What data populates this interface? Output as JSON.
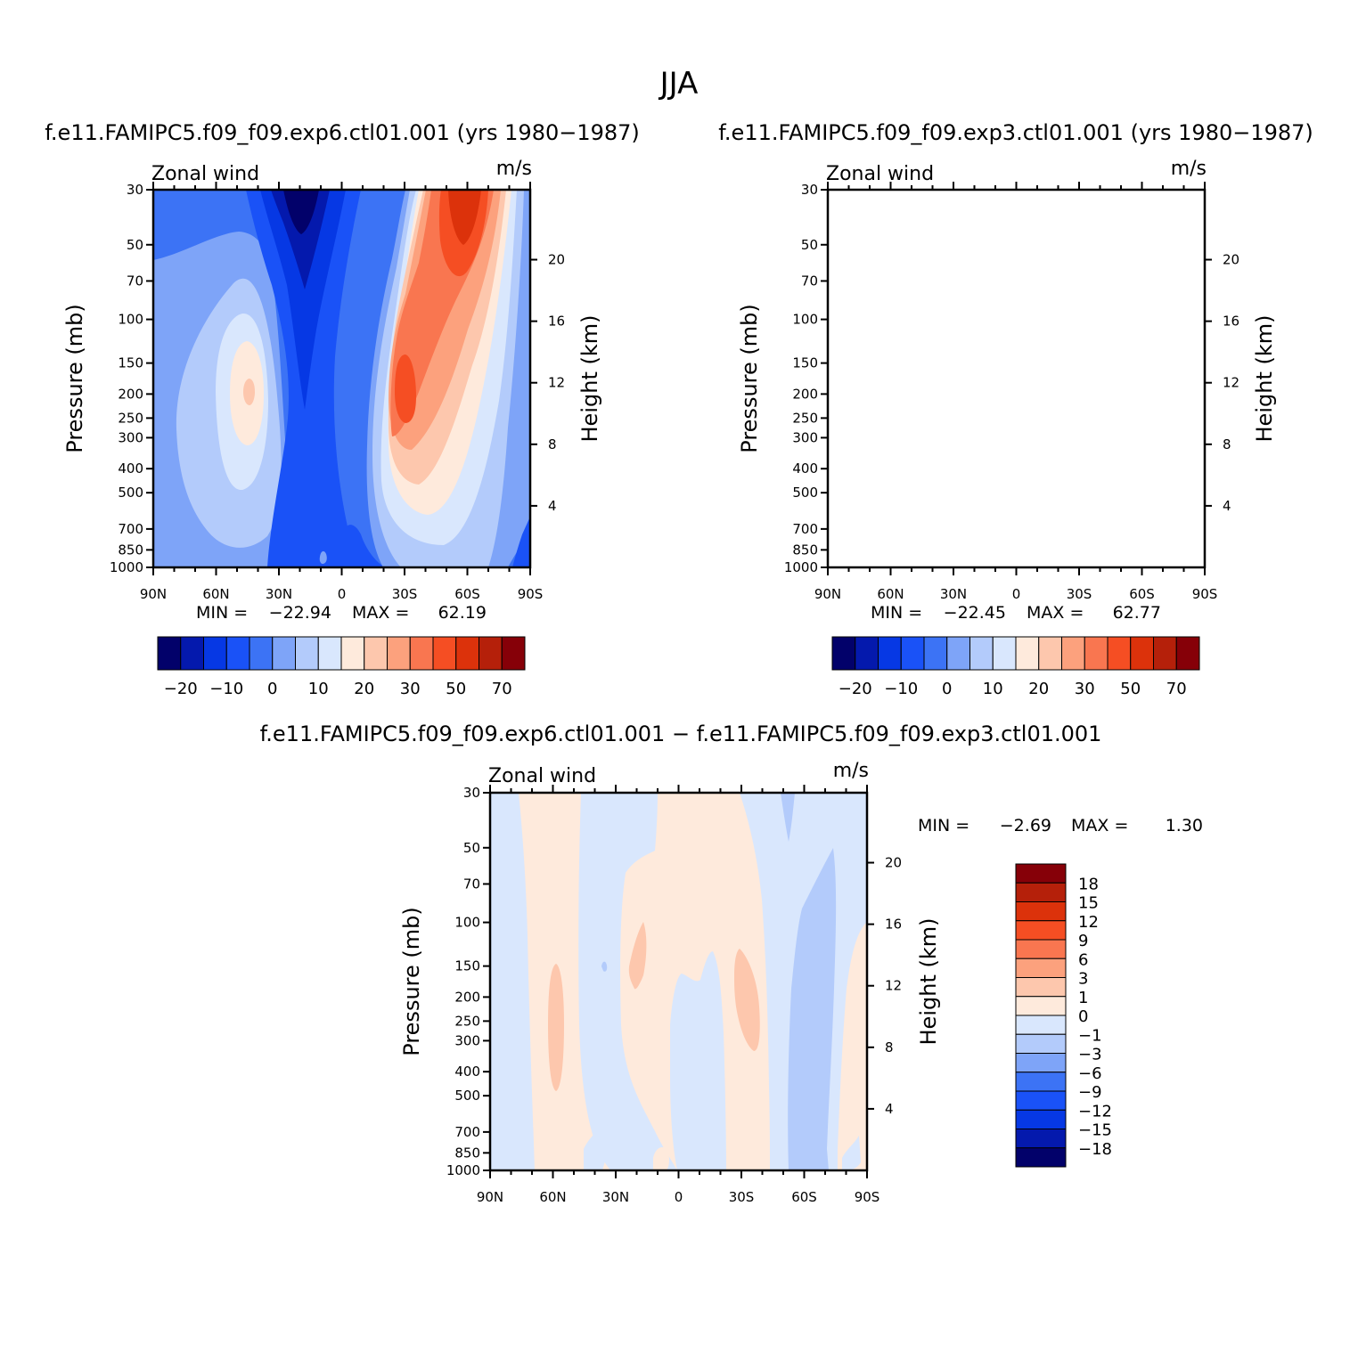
{
  "figure_title": "JJA",
  "chart_data": [
    {
      "type": "heatmap",
      "id": "panel-a",
      "title": "f.e11.FAMIPC5.f09_f09.exp6.ctl01.001 (yrs 1980−1987)",
      "left_label": "Zonal wind",
      "right_label": "m/s",
      "ylabel": "Pressure (mb)",
      "y2label": "Height (km)",
      "x_ticks": [
        "90N",
        "60N",
        "30N",
        "0",
        "30S",
        "60S",
        "90S"
      ],
      "y_ticks": [
        30,
        50,
        70,
        100,
        150,
        200,
        250,
        300,
        400,
        500,
        700,
        850,
        1000
      ],
      "y2_ticks": [
        20,
        16,
        12,
        8,
        4
      ],
      "ylim": [
        1000,
        30
      ],
      "xlim": [
        90,
        -90
      ],
      "min_label": "MIN =",
      "min_value": "−22.94",
      "max_label": "MAX =",
      "max_value": "62.19",
      "colorbar": {
        "orientation": "horizontal",
        "labels": [
          "−20",
          "−10",
          "0",
          "10",
          "20",
          "30",
          "50",
          "70"
        ]
      }
    },
    {
      "type": "heatmap",
      "id": "panel-b",
      "title": "f.e11.FAMIPC5.f09_f09.exp3.ctl01.001 (yrs 1980−1987)",
      "left_label": "Zonal wind",
      "right_label": "m/s",
      "ylabel": "Pressure (mb)",
      "y2label": "Height (km)",
      "x_ticks": [
        "90N",
        "60N",
        "30N",
        "0",
        "30S",
        "60S",
        "90S"
      ],
      "y_ticks": [
        30,
        50,
        70,
        100,
        150,
        200,
        250,
        300,
        400,
        500,
        700,
        850,
        1000
      ],
      "y2_ticks": [
        20,
        16,
        12,
        8,
        4
      ],
      "ylim": [
        1000,
        30
      ],
      "xlim": [
        90,
        -90
      ],
      "min_label": "MIN =",
      "min_value": "−22.45",
      "max_label": "MAX =",
      "max_value": "62.77",
      "colorbar": {
        "orientation": "horizontal",
        "labels": [
          "−20",
          "−10",
          "0",
          "10",
          "20",
          "30",
          "50",
          "70"
        ]
      }
    },
    {
      "type": "heatmap",
      "id": "panel-c",
      "title": "f.e11.FAMIPC5.f09_f09.exp6.ctl01.001 − f.e11.FAMIPC5.f09_f09.exp3.ctl01.001",
      "left_label": "Zonal wind",
      "right_label": "m/s",
      "ylabel": "Pressure (mb)",
      "y2label": "Height (km)",
      "x_ticks": [
        "90N",
        "60N",
        "30N",
        "0",
        "30S",
        "60S",
        "90S"
      ],
      "y_ticks": [
        30,
        50,
        70,
        100,
        150,
        200,
        250,
        300,
        400,
        500,
        700,
        850,
        1000
      ],
      "y2_ticks": [
        20,
        16,
        12,
        8,
        4
      ],
      "ylim": [
        1000,
        30
      ],
      "xlim": [
        90,
        -90
      ],
      "min_label": "MIN =",
      "min_value": "−2.69",
      "max_label": "MAX =",
      "max_value": "1.30",
      "colorbar": {
        "orientation": "vertical",
        "labels": [
          "18",
          "15",
          "12",
          "9",
          "6",
          "3",
          "1",
          "0",
          "−1",
          "−3",
          "−6",
          "−9",
          "−12",
          "−15",
          "−18"
        ]
      }
    }
  ],
  "palette": [
    "#02016a",
    "#0419ad",
    "#0638e4",
    "#1a52f7",
    "#3c73f5",
    "#7ea4f8",
    "#b3cbfb",
    "#d9e7fd",
    "#feeadc",
    "#fdc7ad",
    "#fca17d",
    "#f97650",
    "#f54e23",
    "#dc320b",
    "#b5200a",
    "#860008"
  ]
}
